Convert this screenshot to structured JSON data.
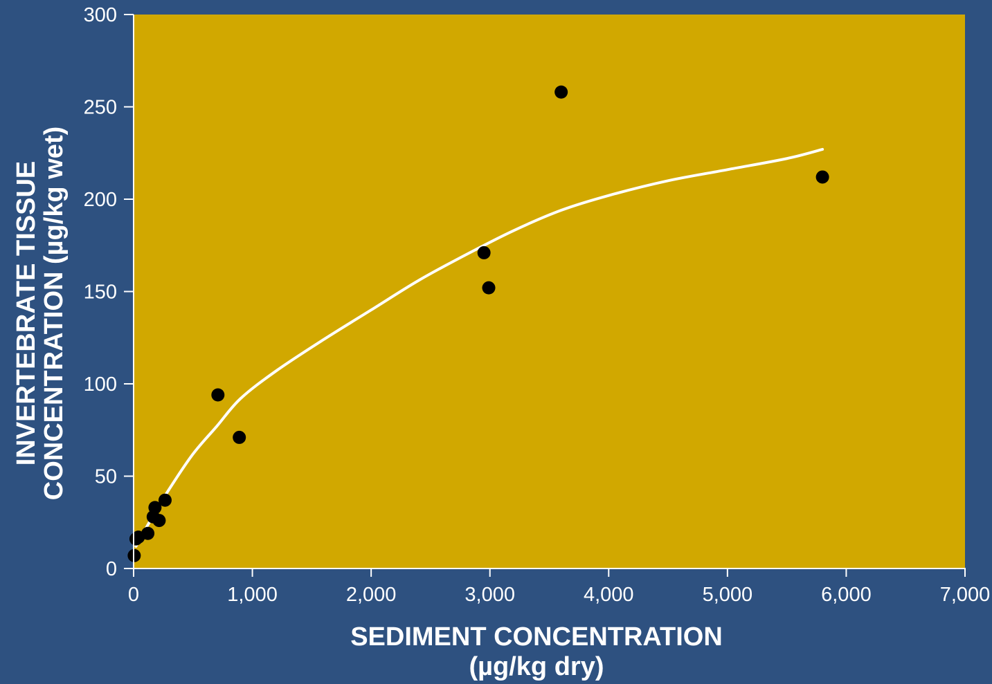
{
  "colors": {
    "background": "#2e5180",
    "plot_area": "#d1a800",
    "points": "#000000",
    "curve": "#ffffff",
    "axes": "#ffffff",
    "text": "#ffffff"
  },
  "chart_data": {
    "type": "scatter",
    "title": "",
    "xlabel_lines": [
      "SEDIMENT CONCENTRATION",
      "(µg/kg dry)"
    ],
    "ylabel_lines": [
      "INVERTEBRATE TISSUE",
      "CONCENTRATION (µg/kg wet)"
    ],
    "xlim": [
      0,
      7000
    ],
    "ylim": [
      0,
      300
    ],
    "x_ticks": [
      0,
      1000,
      2000,
      3000,
      4000,
      5000,
      6000,
      7000
    ],
    "x_tick_labels": [
      "0",
      "1,000",
      "2,000",
      "3,000",
      "4,000",
      "5,000",
      "6,000",
      "7,000"
    ],
    "y_ticks": [
      0,
      50,
      100,
      150,
      200,
      250,
      300
    ],
    "y_tick_labels": [
      "0",
      "50",
      "100",
      "150",
      "200",
      "250",
      "300"
    ],
    "grid": false,
    "legend": "none",
    "series": [
      {
        "points": [
          {
            "x": 5,
            "y": 7
          },
          {
            "x": 20,
            "y": 16
          },
          {
            "x": 40,
            "y": 17
          },
          {
            "x": 120,
            "y": 19
          },
          {
            "x": 165,
            "y": 28
          },
          {
            "x": 180,
            "y": 33
          },
          {
            "x": 215,
            "y": 26
          },
          {
            "x": 265,
            "y": 37
          },
          {
            "x": 710,
            "y": 94
          },
          {
            "x": 890,
            "y": 71
          },
          {
            "x": 2950,
            "y": 171
          },
          {
            "x": 2990,
            "y": 152
          },
          {
            "x": 3600,
            "y": 258
          },
          {
            "x": 5800,
            "y": 212
          }
        ]
      }
    ],
    "fit_curve": [
      {
        "x": 20,
        "y": 12
      },
      {
        "x": 150,
        "y": 27
      },
      {
        "x": 300,
        "y": 43
      },
      {
        "x": 500,
        "y": 62
      },
      {
        "x": 700,
        "y": 77
      },
      {
        "x": 900,
        "y": 92
      },
      {
        "x": 1200,
        "y": 107
      },
      {
        "x": 1600,
        "y": 124
      },
      {
        "x": 2000,
        "y": 140
      },
      {
        "x": 2400,
        "y": 156
      },
      {
        "x": 2800,
        "y": 170
      },
      {
        "x": 3200,
        "y": 183
      },
      {
        "x": 3600,
        "y": 194
      },
      {
        "x": 4000,
        "y": 202
      },
      {
        "x": 4500,
        "y": 210
      },
      {
        "x": 5000,
        "y": 216
      },
      {
        "x": 5500,
        "y": 222
      },
      {
        "x": 5800,
        "y": 227
      }
    ]
  }
}
